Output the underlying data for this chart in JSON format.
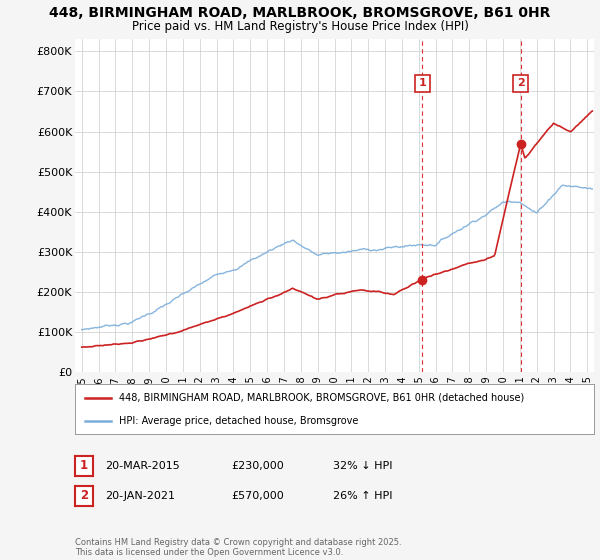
{
  "title": "448, BIRMINGHAM ROAD, MARLBROOK, BROMSGROVE, B61 0HR",
  "subtitle": "Price paid vs. HM Land Registry's House Price Index (HPI)",
  "ylabel_ticks": [
    "£0",
    "£100K",
    "£200K",
    "£300K",
    "£400K",
    "£500K",
    "£600K",
    "£700K",
    "£800K"
  ],
  "ytick_values": [
    0,
    100000,
    200000,
    300000,
    400000,
    500000,
    600000,
    700000,
    800000
  ],
  "ylim": [
    0,
    830000
  ],
  "xlim_start": 1994.6,
  "xlim_end": 2025.4,
  "background_color": "#f5f5f5",
  "plot_bg_color": "#ffffff",
  "red_color": "#cc2222",
  "blue_color": "#7aaddb",
  "dashed_color": "#dd3333",
  "marker1_year": 2015.22,
  "marker2_year": 2021.05,
  "sale1_price": 230000,
  "sale2_price": 570000,
  "sale1": {
    "date": "20-MAR-2015",
    "price": "£230,000",
    "pct": "32% ↓ HPI"
  },
  "sale2": {
    "date": "20-JAN-2021",
    "price": "£570,000",
    "pct": "26% ↑ HPI"
  },
  "legend1": "448, BIRMINGHAM ROAD, MARLBROOK, BROMSGROVE, B61 0HR (detached house)",
  "legend2": "HPI: Average price, detached house, Bromsgrove",
  "footer": "Contains HM Land Registry data © Crown copyright and database right 2025.\nThis data is licensed under the Open Government Licence v3.0.",
  "xtick_years": [
    1995,
    1996,
    1997,
    1998,
    1999,
    2000,
    2001,
    2002,
    2003,
    2004,
    2005,
    2006,
    2007,
    2008,
    2009,
    2010,
    2011,
    2012,
    2013,
    2014,
    2015,
    2016,
    2017,
    2018,
    2019,
    2020,
    2021,
    2022,
    2023,
    2024,
    2025
  ]
}
